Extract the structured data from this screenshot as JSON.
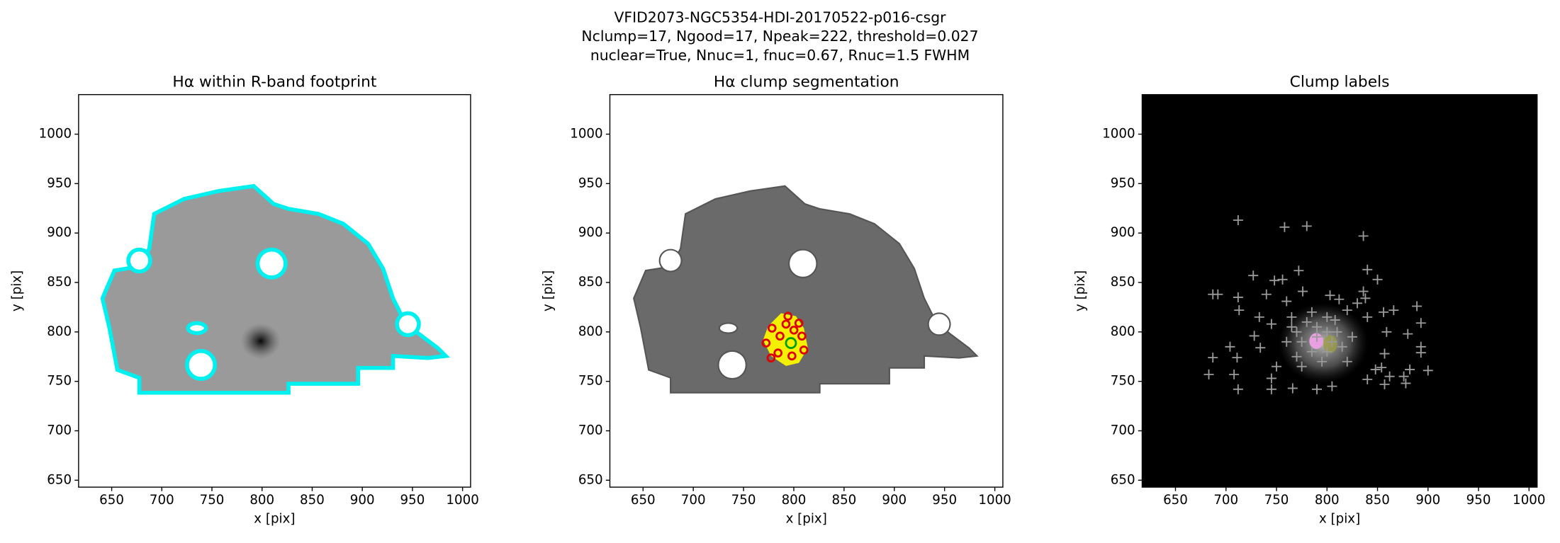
{
  "suptitle": [
    "VFID2073-NGC5354-HDI-20170522-p016-csgr",
    "Nclump=17, Ngood=17, Npeak=222, threshold=0.027",
    "nuclear=True, Nnuc=1, fnuc=0.67, Rnuc=1.5 FWHM"
  ],
  "chart_data": [
    {
      "type": "image",
      "title": "Hα within R-band footprint",
      "xlabel": "x [pix]",
      "ylabel": "y [pix]",
      "xlim": [
        617,
        1008
      ],
      "ylim": [
        643,
        1040
      ],
      "xticks": [
        650,
        700,
        750,
        800,
        850,
        900,
        950,
        1000
      ],
      "yticks": [
        650,
        700,
        750,
        800,
        850,
        900,
        950,
        1000
      ]
    },
    {
      "type": "image",
      "title": "Hα clump segmentation",
      "xlabel": "x [pix]",
      "ylabel": "y [pix]",
      "xlim": [
        617,
        1008
      ],
      "ylim": [
        643,
        1040
      ],
      "xticks": [
        650,
        700,
        750,
        800,
        850,
        900,
        950,
        1000
      ],
      "yticks": [
        650,
        700,
        750,
        800,
        850,
        900,
        950,
        1000
      ]
    },
    {
      "type": "scatter",
      "title": "Clump labels",
      "xlabel": "x [pix]",
      "ylabel": "y [pix]",
      "xlim": [
        617,
        1008
      ],
      "ylim": [
        643,
        1040
      ],
      "xticks": [
        650,
        700,
        750,
        800,
        850,
        900,
        950,
        1000
      ],
      "yticks": [
        650,
        700,
        750,
        800,
        850,
        900,
        950,
        1000
      ],
      "background": "#000000",
      "series": [
        {
          "color": "#9a9a9a",
          "x": [
            712,
            758,
            780,
            836,
            727,
            748,
            756,
            772,
            840,
            850,
            687,
            692,
            712,
            740,
            760,
            776,
            803,
            812,
            836,
            838,
            713,
            733,
            745,
            830,
            856,
            866,
            889,
            840,
            859,
            893,
            880,
            893,
            893,
            687,
            704,
            711,
            728,
            734,
            857,
            854,
            862,
            876,
            882,
            878,
            900,
            857,
            708,
            712,
            683,
            745,
            766,
            790,
            805,
            745,
            840,
            848,
            750,
            820,
            765,
            800,
            770,
            775,
            785,
            795,
            805,
            810,
            780,
            790,
            800,
            815,
            760,
            770,
            790,
            800,
            785,
            775,
            820,
            825,
            765,
            808
          ],
          "values": [
            913,
            906,
            907,
            897,
            857,
            852,
            853,
            862,
            863,
            853,
            838,
            838,
            835,
            838,
            831,
            841,
            837,
            833,
            841,
            834,
            822,
            815,
            808,
            829,
            820,
            822,
            826,
            815,
            800,
            809,
            798,
            785,
            779,
            774,
            785,
            774,
            796,
            784,
            778,
            764,
            755,
            755,
            762,
            748,
            761,
            747,
            757,
            742,
            757,
            742,
            743,
            742,
            745,
            753,
            752,
            762,
            765,
            822,
            815,
            815,
            800,
            790,
            780,
            770,
            790,
            800,
            810,
            805,
            780,
            785,
            790,
            775,
            795,
            800,
            820,
            765,
            770,
            795,
            805,
            812
          ]
        }
      ]
    }
  ]
}
